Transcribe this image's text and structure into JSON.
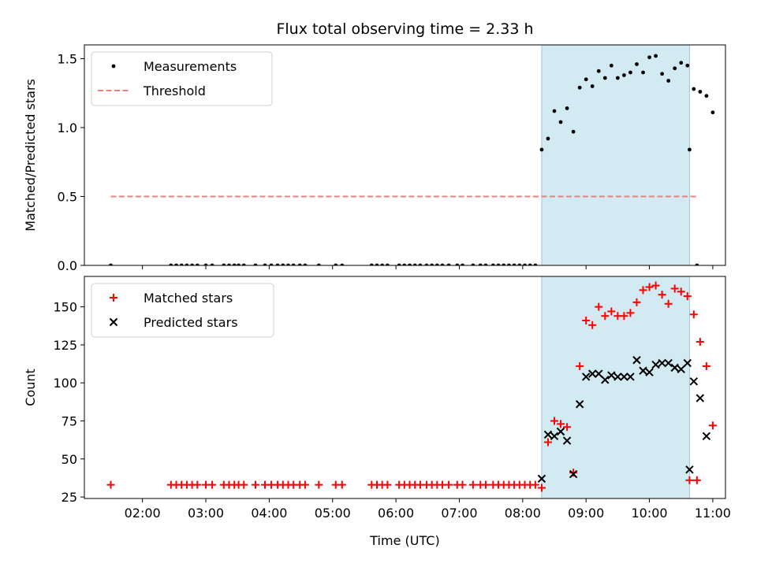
{
  "chart_data": [
    {
      "type": "scatter",
      "title": "Flux total observing time = 2.33 h",
      "ylabel": "Matched/Predicted stars",
      "xlabel": "",
      "xlim": [
        "01:05",
        "11:12"
      ],
      "ylim": [
        0,
        1.6
      ],
      "yticks": [
        0.0,
        0.5,
        1.0,
        1.5
      ],
      "ytick_labels": [
        "0.0",
        "0.5",
        "1.0",
        "1.5"
      ],
      "shaded_interval": [
        "08:18",
        "10:38"
      ],
      "shaded_color": "#add8e6",
      "legend_placement": "top-left",
      "series": [
        {
          "name": "Measurements",
          "marker": "dot",
          "color": "#000000",
          "points": [
            [
              "01:30",
              0
            ],
            [
              "02:27",
              0
            ],
            [
              "02:32",
              0
            ],
            [
              "02:37",
              0
            ],
            [
              "02:42",
              0
            ],
            [
              "02:47",
              0
            ],
            [
              "02:52",
              0
            ],
            [
              "03:00",
              0
            ],
            [
              "03:06",
              0
            ],
            [
              "03:17",
              0
            ],
            [
              "03:22",
              0
            ],
            [
              "03:27",
              0
            ],
            [
              "03:31",
              0
            ],
            [
              "03:36",
              0
            ],
            [
              "03:47",
              0
            ],
            [
              "03:56",
              0
            ],
            [
              "04:02",
              0
            ],
            [
              "04:08",
              0
            ],
            [
              "04:13",
              0
            ],
            [
              "04:18",
              0
            ],
            [
              "04:23",
              0
            ],
            [
              "04:29",
              0
            ],
            [
              "04:34",
              0
            ],
            [
              "04:47",
              0
            ],
            [
              "05:03",
              0
            ],
            [
              "05:09",
              0
            ],
            [
              "05:37",
              0
            ],
            [
              "05:42",
              0
            ],
            [
              "05:47",
              0
            ],
            [
              "05:52",
              0
            ],
            [
              "06:03",
              0
            ],
            [
              "06:08",
              0
            ],
            [
              "06:13",
              0
            ],
            [
              "06:18",
              0
            ],
            [
              "06:23",
              0
            ],
            [
              "06:29",
              0
            ],
            [
              "06:34",
              0
            ],
            [
              "06:39",
              0
            ],
            [
              "06:44",
              0
            ],
            [
              "06:50",
              0
            ],
            [
              "06:58",
              0
            ],
            [
              "07:03",
              0
            ],
            [
              "07:13",
              0
            ],
            [
              "07:20",
              0
            ],
            [
              "07:25",
              0
            ],
            [
              "07:32",
              0
            ],
            [
              "07:37",
              0
            ],
            [
              "07:42",
              0
            ],
            [
              "07:47",
              0
            ],
            [
              "07:52",
              0
            ],
            [
              "07:57",
              0
            ],
            [
              "08:02",
              0
            ],
            [
              "08:07",
              0
            ],
            [
              "08:12",
              0
            ],
            [
              "08:18",
              0.84
            ],
            [
              "08:24",
              0.92
            ],
            [
              "08:30",
              1.12
            ],
            [
              "08:36",
              1.04
            ],
            [
              "08:42",
              1.14
            ],
            [
              "08:48",
              0.97
            ],
            [
              "08:54",
              1.29
            ],
            [
              "09:00",
              1.35
            ],
            [
              "09:06",
              1.3
            ],
            [
              "09:12",
              1.41
            ],
            [
              "09:18",
              1.36
            ],
            [
              "09:24",
              1.45
            ],
            [
              "09:30",
              1.36
            ],
            [
              "09:36",
              1.38
            ],
            [
              "09:42",
              1.4
            ],
            [
              "09:48",
              1.46
            ],
            [
              "09:54",
              1.4
            ],
            [
              "10:00",
              1.51
            ],
            [
              "10:06",
              1.52
            ],
            [
              "10:12",
              1.39
            ],
            [
              "10:18",
              1.34
            ],
            [
              "10:24",
              1.43
            ],
            [
              "10:30",
              1.47
            ],
            [
              "10:36",
              1.45
            ],
            [
              "10:42",
              1.28
            ],
            [
              "10:48",
              1.26
            ],
            [
              "10:54",
              1.23
            ],
            [
              "11:00",
              1.11
            ],
            [
              "10:38",
              0.84
            ],
            [
              "10:45",
              0
            ]
          ]
        },
        {
          "name": "Threshold",
          "marker": "dashed-line",
          "color": "#f08080",
          "points": [
            [
              "01:30",
              0.5
            ],
            [
              "10:45",
              0.5
            ]
          ]
        }
      ]
    },
    {
      "type": "scatter",
      "title": "",
      "ylabel": "Count",
      "xlabel": "Time (UTC)",
      "xlim": [
        "01:05",
        "11:12"
      ],
      "ylim": [
        24,
        170
      ],
      "yticks": [
        25,
        50,
        75,
        100,
        125,
        150
      ],
      "xticks": [
        "02:00",
        "03:00",
        "04:00",
        "05:00",
        "06:00",
        "07:00",
        "08:00",
        "09:00",
        "10:00",
        "11:00"
      ],
      "shaded_interval": [
        "08:18",
        "10:38"
      ],
      "shaded_color": "#add8e6",
      "legend_placement": "top-left",
      "series": [
        {
          "name": "Matched stars",
          "marker": "plus",
          "color": "#ff0000",
          "points": [
            [
              "01:30",
              33
            ],
            [
              "02:27",
              33
            ],
            [
              "02:32",
              33
            ],
            [
              "02:37",
              33
            ],
            [
              "02:42",
              33
            ],
            [
              "02:47",
              33
            ],
            [
              "02:52",
              33
            ],
            [
              "03:00",
              33
            ],
            [
              "03:06",
              33
            ],
            [
              "03:17",
              33
            ],
            [
              "03:22",
              33
            ],
            [
              "03:27",
              33
            ],
            [
              "03:31",
              33
            ],
            [
              "03:36",
              33
            ],
            [
              "03:47",
              33
            ],
            [
              "03:56",
              33
            ],
            [
              "04:02",
              33
            ],
            [
              "04:08",
              33
            ],
            [
              "04:13",
              33
            ],
            [
              "04:18",
              33
            ],
            [
              "04:23",
              33
            ],
            [
              "04:29",
              33
            ],
            [
              "04:34",
              33
            ],
            [
              "04:47",
              33
            ],
            [
              "05:03",
              33
            ],
            [
              "05:09",
              33
            ],
            [
              "05:37",
              33
            ],
            [
              "05:42",
              33
            ],
            [
              "05:47",
              33
            ],
            [
              "05:52",
              33
            ],
            [
              "06:03",
              33
            ],
            [
              "06:08",
              33
            ],
            [
              "06:13",
              33
            ],
            [
              "06:18",
              33
            ],
            [
              "06:23",
              33
            ],
            [
              "06:29",
              33
            ],
            [
              "06:34",
              33
            ],
            [
              "06:39",
              33
            ],
            [
              "06:44",
              33
            ],
            [
              "06:50",
              33
            ],
            [
              "06:58",
              33
            ],
            [
              "07:03",
              33
            ],
            [
              "07:13",
              33
            ],
            [
              "07:20",
              33
            ],
            [
              "07:25",
              33
            ],
            [
              "07:32",
              33
            ],
            [
              "07:37",
              33
            ],
            [
              "07:42",
              33
            ],
            [
              "07:47",
              33
            ],
            [
              "07:52",
              33
            ],
            [
              "07:57",
              33
            ],
            [
              "08:02",
              33
            ],
            [
              "08:07",
              33
            ],
            [
              "08:12",
              33
            ],
            [
              "08:18",
              31
            ],
            [
              "08:24",
              61
            ],
            [
              "08:30",
              75
            ],
            [
              "08:36",
              73
            ],
            [
              "08:42",
              71
            ],
            [
              "08:48",
              41
            ],
            [
              "08:54",
              111
            ],
            [
              "09:00",
              141
            ],
            [
              "09:06",
              138
            ],
            [
              "09:12",
              150
            ],
            [
              "09:18",
              144
            ],
            [
              "09:24",
              147
            ],
            [
              "09:30",
              144
            ],
            [
              "09:36",
              144
            ],
            [
              "09:42",
              146
            ],
            [
              "09:48",
              153
            ],
            [
              "09:54",
              161
            ],
            [
              "10:00",
              163
            ],
            [
              "10:06",
              164
            ],
            [
              "10:12",
              158
            ],
            [
              "10:18",
              152
            ],
            [
              "10:24",
              162
            ],
            [
              "10:30",
              160
            ],
            [
              "10:36",
              157
            ],
            [
              "10:42",
              145
            ],
            [
              "10:48",
              127
            ],
            [
              "10:54",
              111
            ],
            [
              "11:00",
              72
            ],
            [
              "10:38",
              36
            ],
            [
              "10:45",
              36
            ]
          ]
        },
        {
          "name": "Predicted stars",
          "marker": "x",
          "color": "#000000",
          "points": [
            [
              "08:18",
              37
            ],
            [
              "08:24",
              66
            ],
            [
              "08:30",
              65
            ],
            [
              "08:36",
              68
            ],
            [
              "08:42",
              62
            ],
            [
              "08:48",
              40
            ],
            [
              "08:54",
              86
            ],
            [
              "09:00",
              104
            ],
            [
              "09:06",
              106
            ],
            [
              "09:12",
              106
            ],
            [
              "09:18",
              102
            ],
            [
              "09:24",
              105
            ],
            [
              "09:30",
              104
            ],
            [
              "09:36",
              104
            ],
            [
              "09:42",
              104
            ],
            [
              "09:48",
              115
            ],
            [
              "09:54",
              108
            ],
            [
              "10:00",
              107
            ],
            [
              "10:06",
              112
            ],
            [
              "10:12",
              113
            ],
            [
              "10:18",
              113
            ],
            [
              "10:24",
              110
            ],
            [
              "10:30",
              109
            ],
            [
              "10:36",
              113
            ],
            [
              "10:42",
              101
            ],
            [
              "10:48",
              90
            ],
            [
              "10:54",
              65
            ],
            [
              "10:38",
              43
            ]
          ]
        }
      ]
    }
  ]
}
